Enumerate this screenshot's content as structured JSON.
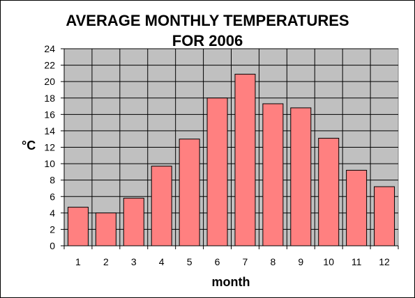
{
  "chart_data": {
    "type": "bar",
    "title": [
      "AVERAGE MONTHLY TEMPERATURES",
      "FOR 2006"
    ],
    "xlabel": "month",
    "ylabel": "°C",
    "categories": [
      "1",
      "2",
      "3",
      "4",
      "5",
      "6",
      "7",
      "8",
      "9",
      "10",
      "11",
      "12"
    ],
    "values": [
      4.7,
      4.0,
      5.8,
      9.7,
      13.0,
      18.0,
      20.9,
      17.3,
      16.8,
      13.1,
      9.2,
      7.2
    ],
    "ylim": [
      0,
      24
    ],
    "yticks": [
      "0",
      "2",
      "4",
      "6",
      "8",
      "10",
      "12",
      "14",
      "16",
      "18",
      "20",
      "22",
      "24"
    ],
    "grid": true,
    "legend": "none",
    "colors": {
      "bar_fill": "#ff8080",
      "bar_stroke": "#000000",
      "plot_bg": "#c0c0c0",
      "gridline": "#000000"
    }
  }
}
